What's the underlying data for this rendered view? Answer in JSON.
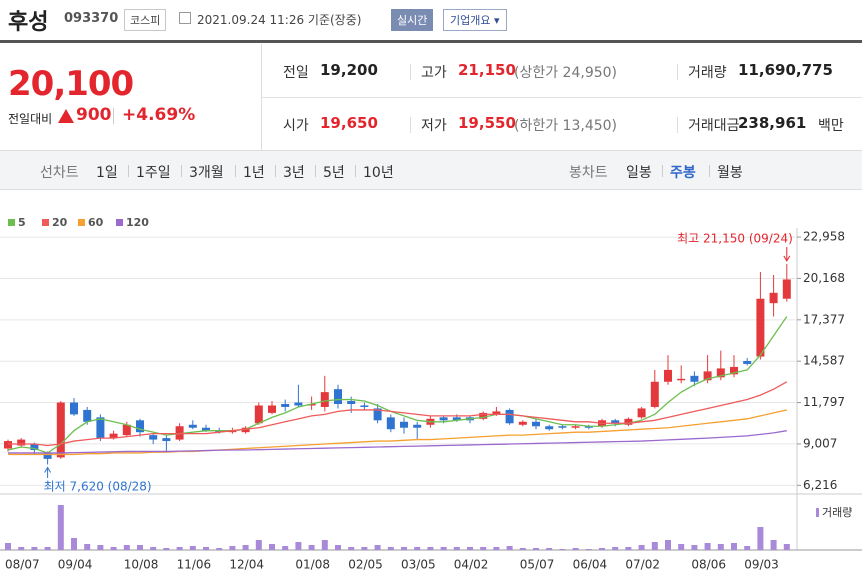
{
  "header": {
    "name": "후성",
    "code": "093370",
    "market": "코스피",
    "time": "2021.09.24 11:26 기준(장중)",
    "realtime": "실시간",
    "company": "기업개요 ▾"
  },
  "quote": {
    "price": "20,100",
    "change_label": "전일대비",
    "change": "900",
    "change_pct": "+4.69%",
    "rows": [
      [
        {
          "label": "전일",
          "value": "19,200"
        },
        {
          "label": "고가",
          "value": "21,150",
          "note": "(상한가 24,950)"
        },
        {
          "label": "거래량",
          "value": "11,690,775"
        }
      ],
      [
        {
          "label": "시가",
          "value": "19,650"
        },
        {
          "label": "저가",
          "value": "19,550",
          "note": "(하한가 13,450)"
        },
        {
          "label": "거래대금",
          "value": "238,961",
          "unit": "백만"
        }
      ]
    ]
  },
  "tabs": {
    "line_label": "선차트",
    "line_periods": [
      "1일",
      "1주일",
      "3개월",
      "1년",
      "3년",
      "5년",
      "10년"
    ],
    "candle_label": "봉차트",
    "candle_periods": [
      "일봉",
      "주봉",
      "월봉"
    ],
    "active": "주봉"
  },
  "chart_data": {
    "type": "candlestick",
    "categories": [
      "08/07",
      null,
      null,
      null,
      "09/04",
      null,
      null,
      null,
      null,
      "10/08",
      null,
      null,
      null,
      "11/06",
      null,
      null,
      null,
      "12/04",
      null,
      null,
      null,
      null,
      "01/08",
      null,
      null,
      null,
      "02/05",
      null,
      null,
      null,
      "03/05",
      null,
      null,
      null,
      "04/02",
      null,
      null,
      null,
      null,
      "05/07",
      null,
      null,
      null,
      "06/04",
      null,
      null,
      null,
      "07/02",
      null,
      null,
      null,
      null,
      "08/06",
      null,
      null,
      null,
      "09/03",
      null,
      null,
      null
    ],
    "open": [
      8700,
      8900,
      9000,
      8400,
      8100,
      11800,
      11300,
      10800,
      9400,
      9600,
      10600,
      9600,
      9400,
      9300,
      10300,
      10100,
      9900,
      9800,
      9800,
      10400,
      11100,
      11700,
      11800,
      11600,
      11500,
      12700,
      11900,
      11600,
      11400,
      10800,
      10500,
      10300,
      10300,
      10800,
      10800,
      10800,
      10700,
      11000,
      11300,
      10300,
      10500,
      10200,
      10200,
      10100,
      10200,
      10200,
      10600,
      10300,
      10800,
      11500,
      13200,
      13300,
      13600,
      13300,
      13500,
      13700,
      14600,
      14900,
      18500,
      18800
    ],
    "high": [
      9300,
      9400,
      9100,
      8500,
      11900,
      12100,
      11500,
      11000,
      9900,
      10500,
      10700,
      9700,
      9600,
      10400,
      10600,
      10300,
      10100,
      10100,
      10200,
      11800,
      11900,
      12000,
      13000,
      12200,
      13600,
      13000,
      12200,
      11800,
      11700,
      11000,
      10800,
      10500,
      10900,
      10900,
      11000,
      10900,
      11200,
      11500,
      11400,
      10600,
      10700,
      10300,
      10300,
      10300,
      10300,
      10700,
      10700,
      10800,
      11500,
      14000,
      15000,
      14300,
      13900,
      15000,
      15300,
      15000,
      14800,
      20600,
      20400,
      21150
    ],
    "low": [
      8500,
      8800,
      8300,
      7620,
      8000,
      10900,
      10300,
      9200,
      9300,
      9500,
      9500,
      9000,
      8500,
      9200,
      10000,
      9800,
      9700,
      9700,
      9700,
      10300,
      11000,
      11200,
      11500,
      11300,
      11200,
      11400,
      11100,
      11300,
      10400,
      9800,
      9700,
      9300,
      10100,
      10400,
      10500,
      10400,
      10600,
      10900,
      10300,
      10200,
      10000,
      9900,
      10000,
      10000,
      10000,
      10100,
      10200,
      10200,
      10700,
      11400,
      13000,
      13100,
      12900,
      13100,
      13300,
      13500,
      14300,
      14700,
      17600,
      18600
    ],
    "close": [
      9200,
      9300,
      8600,
      8000,
      11800,
      11000,
      10500,
      9400,
      9700,
      10300,
      9800,
      9300,
      9200,
      10200,
      10100,
      9900,
      9800,
      9900,
      10100,
      11600,
      11600,
      11500,
      11600,
      11700,
      12500,
      11700,
      11700,
      11500,
      10600,
      10000,
      10100,
      10100,
      10700,
      10600,
      10600,
      10600,
      11100,
      11200,
      10400,
      10500,
      10200,
      10000,
      10100,
      10200,
      10100,
      10600,
      10400,
      10700,
      11400,
      13200,
      14000,
      13400,
      13200,
      13900,
      14100,
      14200,
      14400,
      18800,
      19200,
      20100
    ],
    "up_color": "#e4393c",
    "down_color": "#2f74d0",
    "series": [
      {
        "name": "5",
        "color": "#6cbf4f",
        "values": [
          8600,
          8800,
          8700,
          8400,
          9000,
          9900,
          10500,
          10700,
          10500,
          10300,
          10000,
          9800,
          9600,
          9700,
          9800,
          9900,
          9900,
          9900,
          10000,
          10400,
          10800,
          11100,
          11500,
          11700,
          11900,
          12000,
          12000,
          11900,
          11600,
          11200,
          10900,
          10600,
          10500,
          10500,
          10600,
          10700,
          10800,
          11000,
          11000,
          10900,
          10700,
          10500,
          10300,
          10300,
          10200,
          10200,
          10300,
          10400,
          10600,
          11000,
          11800,
          12500,
          13000,
          13400,
          13600,
          13800,
          14000,
          15000,
          16300,
          17600
        ]
      },
      {
        "name": "20",
        "color": "#f05a5a",
        "values": [
          9000,
          9000,
          9000,
          8900,
          9000,
          9200,
          9300,
          9400,
          9400,
          9500,
          9600,
          9700,
          9700,
          9700,
          9700,
          9700,
          9800,
          9900,
          10000,
          10100,
          10300,
          10500,
          10700,
          10900,
          11000,
          11200,
          11300,
          11300,
          11300,
          11200,
          11100,
          11000,
          10900,
          10900,
          10900,
          10900,
          11000,
          11000,
          11000,
          10900,
          10800,
          10700,
          10600,
          10500,
          10500,
          10400,
          10400,
          10400,
          10500,
          10600,
          10800,
          11000,
          11200,
          11400,
          11600,
          11800,
          12000,
          12300,
          12700,
          13200
        ]
      },
      {
        "name": "60",
        "color": "#f5a030",
        "values": [
          8300,
          8300,
          8300,
          8300,
          8300,
          8300,
          8350,
          8350,
          8400,
          8400,
          8400,
          8450,
          8450,
          8500,
          8500,
          8550,
          8600,
          8650,
          8700,
          8750,
          8800,
          8850,
          8900,
          8950,
          9000,
          9050,
          9100,
          9150,
          9200,
          9200,
          9250,
          9300,
          9300,
          9350,
          9400,
          9450,
          9500,
          9550,
          9600,
          9600,
          9650,
          9700,
          9750,
          9800,
          9800,
          9850,
          9900,
          9950,
          10000,
          10050,
          10100,
          10200,
          10300,
          10400,
          10500,
          10600,
          10700,
          10900,
          11100,
          11300
        ]
      },
      {
        "name": "120",
        "color": "#9b69cf",
        "values": [
          8400,
          8400,
          8400,
          8400,
          8400,
          8420,
          8440,
          8460,
          8480,
          8500,
          8500,
          8500,
          8500,
          8520,
          8540,
          8560,
          8580,
          8600,
          8600,
          8620,
          8640,
          8660,
          8680,
          8700,
          8720,
          8740,
          8760,
          8780,
          8800,
          8820,
          8840,
          8860,
          8880,
          8900,
          8920,
          8940,
          8960,
          8980,
          9000,
          9020,
          9040,
          9060,
          9080,
          9100,
          9120,
          9140,
          9160,
          9180,
          9200,
          9240,
          9280,
          9320,
          9360,
          9400,
          9450,
          9500,
          9550,
          9650,
          9750,
          9900
        ]
      }
    ],
    "volume": [
      7000000,
      3000000,
      3000000,
      3000000,
      45000000,
      12000000,
      6000000,
      5000000,
      3000000,
      5000000,
      5000000,
      3000000,
      2000000,
      3000000,
      4000000,
      3000000,
      2000000,
      4000000,
      5000000,
      10000000,
      6000000,
      4000000,
      8000000,
      5000000,
      10000000,
      5000000,
      3000000,
      3000000,
      5000000,
      3000000,
      3000000,
      3000000,
      3000000,
      3000000,
      3000000,
      3000000,
      3000000,
      3000000,
      4000000,
      2000000,
      2000000,
      2000000,
      1000000,
      2000000,
      1000000,
      2000000,
      3000000,
      3000000,
      5000000,
      8000000,
      10000000,
      6000000,
      5000000,
      7000000,
      6000000,
      7000000,
      4000000,
      23000000,
      10000000,
      6000000
    ],
    "volume_color": "#a88ad8",
    "volume_label": "거래량",
    "volume_ylim": [
      0,
      45000000
    ],
    "ylim": [
      5900,
      23300
    ],
    "yticks": [
      {
        "value": 6216,
        "label": "6,216"
      },
      {
        "value": 9007,
        "label": "9,007"
      },
      {
        "value": 11797,
        "label": "11,797"
      },
      {
        "value": 14587,
        "label": "14,587"
      },
      {
        "value": 17377,
        "label": "17,377"
      },
      {
        "value": 20168,
        "label": "20,168"
      },
      {
        "value": 22958,
        "label": "22,958"
      }
    ],
    "grid": true,
    "annotations": {
      "high": "최고 21,150 (09/24)",
      "low": "최저 7,620 (08/28)"
    }
  }
}
